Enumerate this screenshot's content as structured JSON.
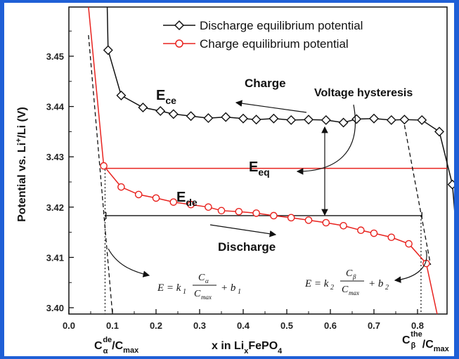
{
  "chart_data": {
    "type": "line",
    "xlabel": "x in LixFePO4",
    "ylabel": "Potential vs. Li+/Li (V)",
    "xlim": [
      0.0,
      0.9
    ],
    "ylim": [
      3.398,
      3.459
    ],
    "x_ticks": [
      "0.0",
      "0.1",
      "0.2",
      "0.3",
      "0.4",
      "0.5",
      "0.6",
      "0.7",
      "0.8"
    ],
    "y_ticks": [
      "3.40",
      "3.41",
      "3.42",
      "3.43",
      "3.44",
      "3.45"
    ],
    "legend_position": "top",
    "series": [
      {
        "name": "Discharge equilibrium potential",
        "color": "#111111",
        "marker": "diamond",
        "x": [
          0.09,
          0.12,
          0.17,
          0.21,
          0.24,
          0.28,
          0.32,
          0.36,
          0.4,
          0.43,
          0.47,
          0.51,
          0.55,
          0.59,
          0.63,
          0.66,
          0.7,
          0.74,
          0.77,
          0.81,
          0.85,
          0.88
        ],
        "y": [
          3.4512,
          3.4422,
          3.4398,
          3.4391,
          3.4385,
          3.4381,
          3.4377,
          3.4379,
          3.4376,
          3.4374,
          3.4376,
          3.4373,
          3.4374,
          3.4373,
          3.4368,
          3.4375,
          3.4376,
          3.4373,
          3.4374,
          3.4373,
          3.435,
          3.4245
        ]
      },
      {
        "name": "Charge equilibrium potential",
        "color": "#e8231f",
        "marker": "circle",
        "x": [
          0.08,
          0.12,
          0.16,
          0.2,
          0.24,
          0.28,
          0.32,
          0.35,
          0.39,
          0.43,
          0.47,
          0.51,
          0.55,
          0.59,
          0.63,
          0.67,
          0.7,
          0.74,
          0.78,
          0.82
        ],
        "y": [
          3.4282,
          3.424,
          3.4225,
          3.4218,
          3.421,
          3.4205,
          3.42,
          3.4193,
          3.4191,
          3.4188,
          3.4183,
          3.4179,
          3.4174,
          3.4169,
          3.4163,
          3.4154,
          3.4148,
          3.414,
          3.4127,
          3.4088
        ]
      }
    ],
    "legend": [
      "Discharge equilibrium potential",
      "Charge equilibrium potential"
    ],
    "annotations": {
      "e_ce": "E",
      "e_ce_sub": "ce",
      "e_de": "E",
      "e_de_sub": "de",
      "e_eq": "E",
      "e_eq_sub": "eq",
      "charge": "Charge",
      "discharge": "Discharge",
      "voltage_hysteresis": "Voltage hysteresis",
      "c_alpha_label": "C",
      "c_alpha_sub": "α",
      "c_alpha_sup": "de",
      "c_max_label": "/C",
      "c_max_sub": "max",
      "c_beta_label": "C",
      "c_beta_sub": "β",
      "c_beta_sup": "the",
      "formula_left": "E = k1 Cα/Cmax + b1",
      "formula_right": "E = k2 Cβ/Cmax + b2"
    },
    "reference_lines": {
      "e_eq_level": 3.4277,
      "hysteresis_level": 3.4183
    }
  }
}
